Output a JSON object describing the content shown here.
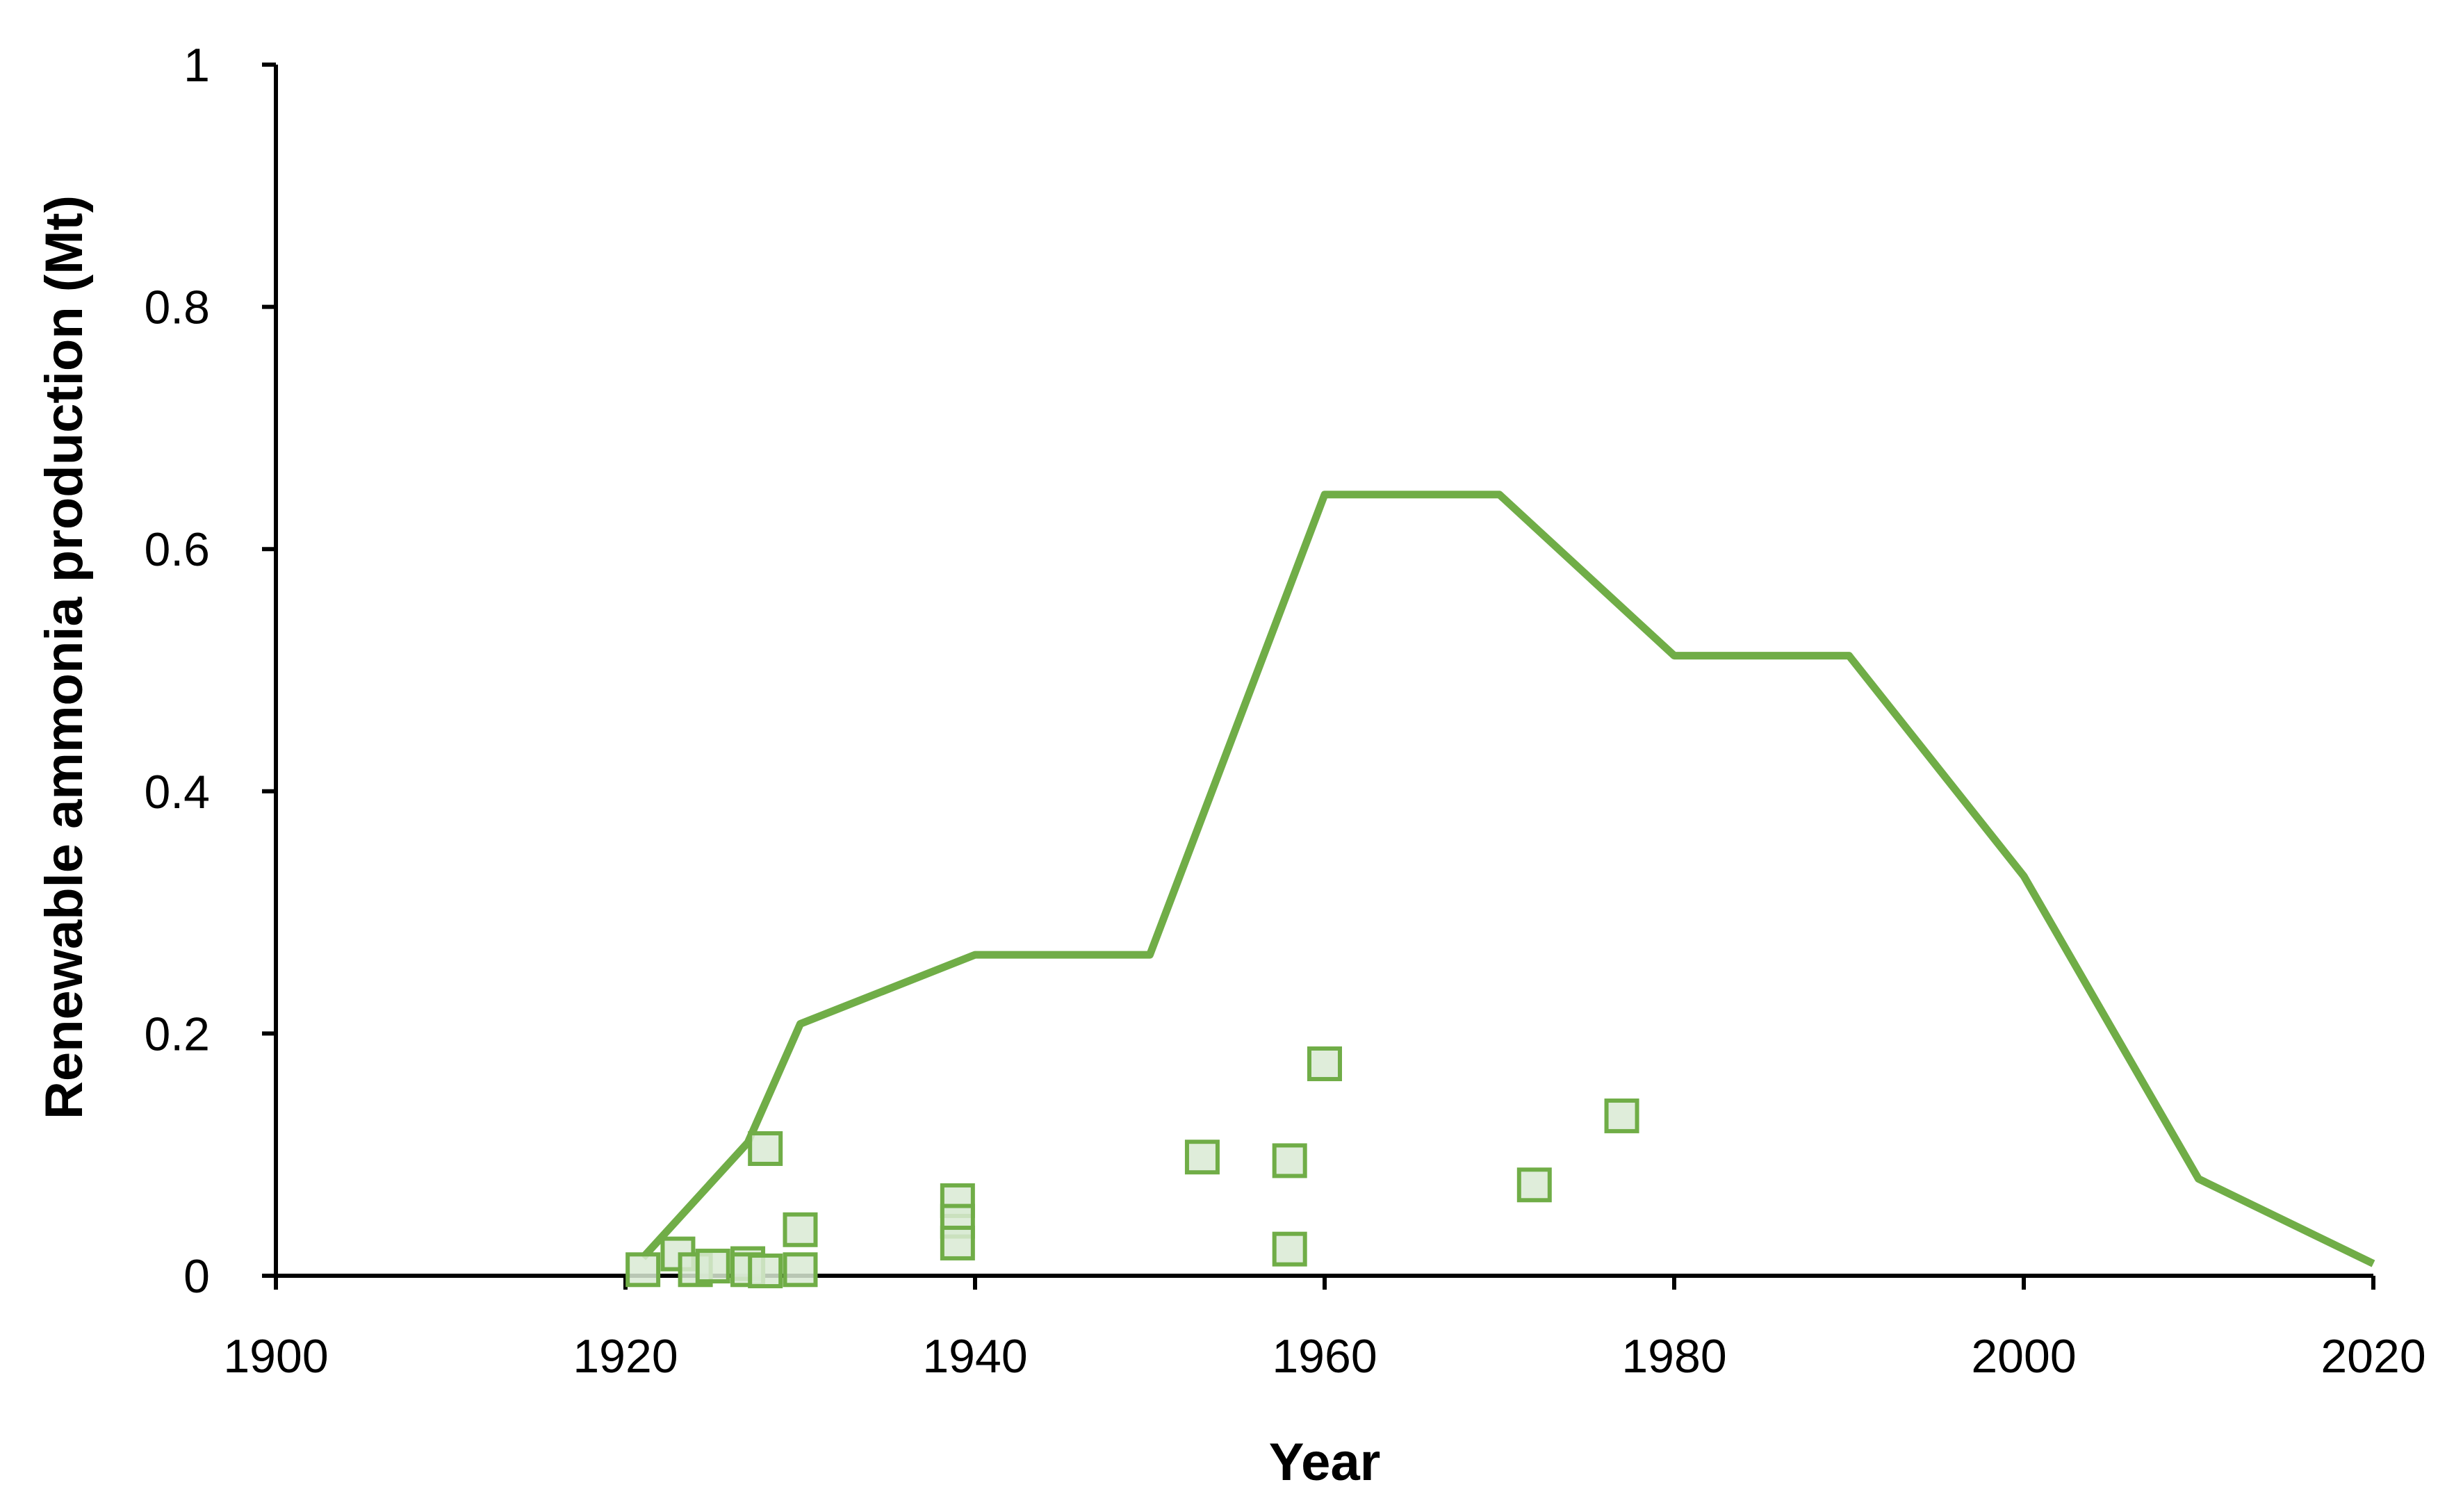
{
  "chart_data": {
    "type": "line",
    "title": "",
    "xlabel": "Year",
    "ylabel": "Renewable ammonia production (Mt)",
    "xlim": [
      1900,
      2020
    ],
    "ylim": [
      0,
      1
    ],
    "x_ticks": [
      1900,
      1920,
      1940,
      1960,
      1980,
      2000,
      2020
    ],
    "y_ticks": [
      0,
      0.2,
      0.4,
      0.6,
      0.8,
      1
    ],
    "y_tick_labels": [
      "0",
      "0.2",
      "0.4",
      "0.6",
      "0.8",
      "1"
    ],
    "grid": false,
    "legend": "none",
    "series": [
      {
        "type": "line",
        "color": "#70AD47",
        "points": [
          [
            1921,
            0.015
          ],
          [
            1927,
            0.11
          ],
          [
            1930,
            0.208
          ],
          [
            1940,
            0.265
          ],
          [
            1950,
            0.265
          ],
          [
            1960,
            0.645
          ],
          [
            1970,
            0.645
          ],
          [
            1980,
            0.512
          ],
          [
            1990,
            0.512
          ],
          [
            2000,
            0.33
          ],
          [
            2010,
            0.08
          ],
          [
            2020,
            0.01
          ]
        ]
      },
      {
        "type": "scatter",
        "marker": "square",
        "color": "#70AD47",
        "fill": "#D9EAD3",
        "points": [
          [
            1921,
            0.005
          ],
          [
            1923,
            0.018
          ],
          [
            1924,
            0.005
          ],
          [
            1925,
            0.008
          ],
          [
            1927,
            0.01
          ],
          [
            1927,
            0.005
          ],
          [
            1928,
            0.105
          ],
          [
            1928,
            0.004
          ],
          [
            1930,
            0.038
          ],
          [
            1930,
            0.005
          ],
          [
            1939,
            0.062
          ],
          [
            1939,
            0.045
          ],
          [
            1939,
            0.027
          ],
          [
            1953,
            0.098
          ],
          [
            1958,
            0.095
          ],
          [
            1958,
            0.022
          ],
          [
            1960,
            0.175
          ],
          [
            1972,
            0.075
          ],
          [
            1977,
            0.132
          ]
        ]
      }
    ]
  }
}
